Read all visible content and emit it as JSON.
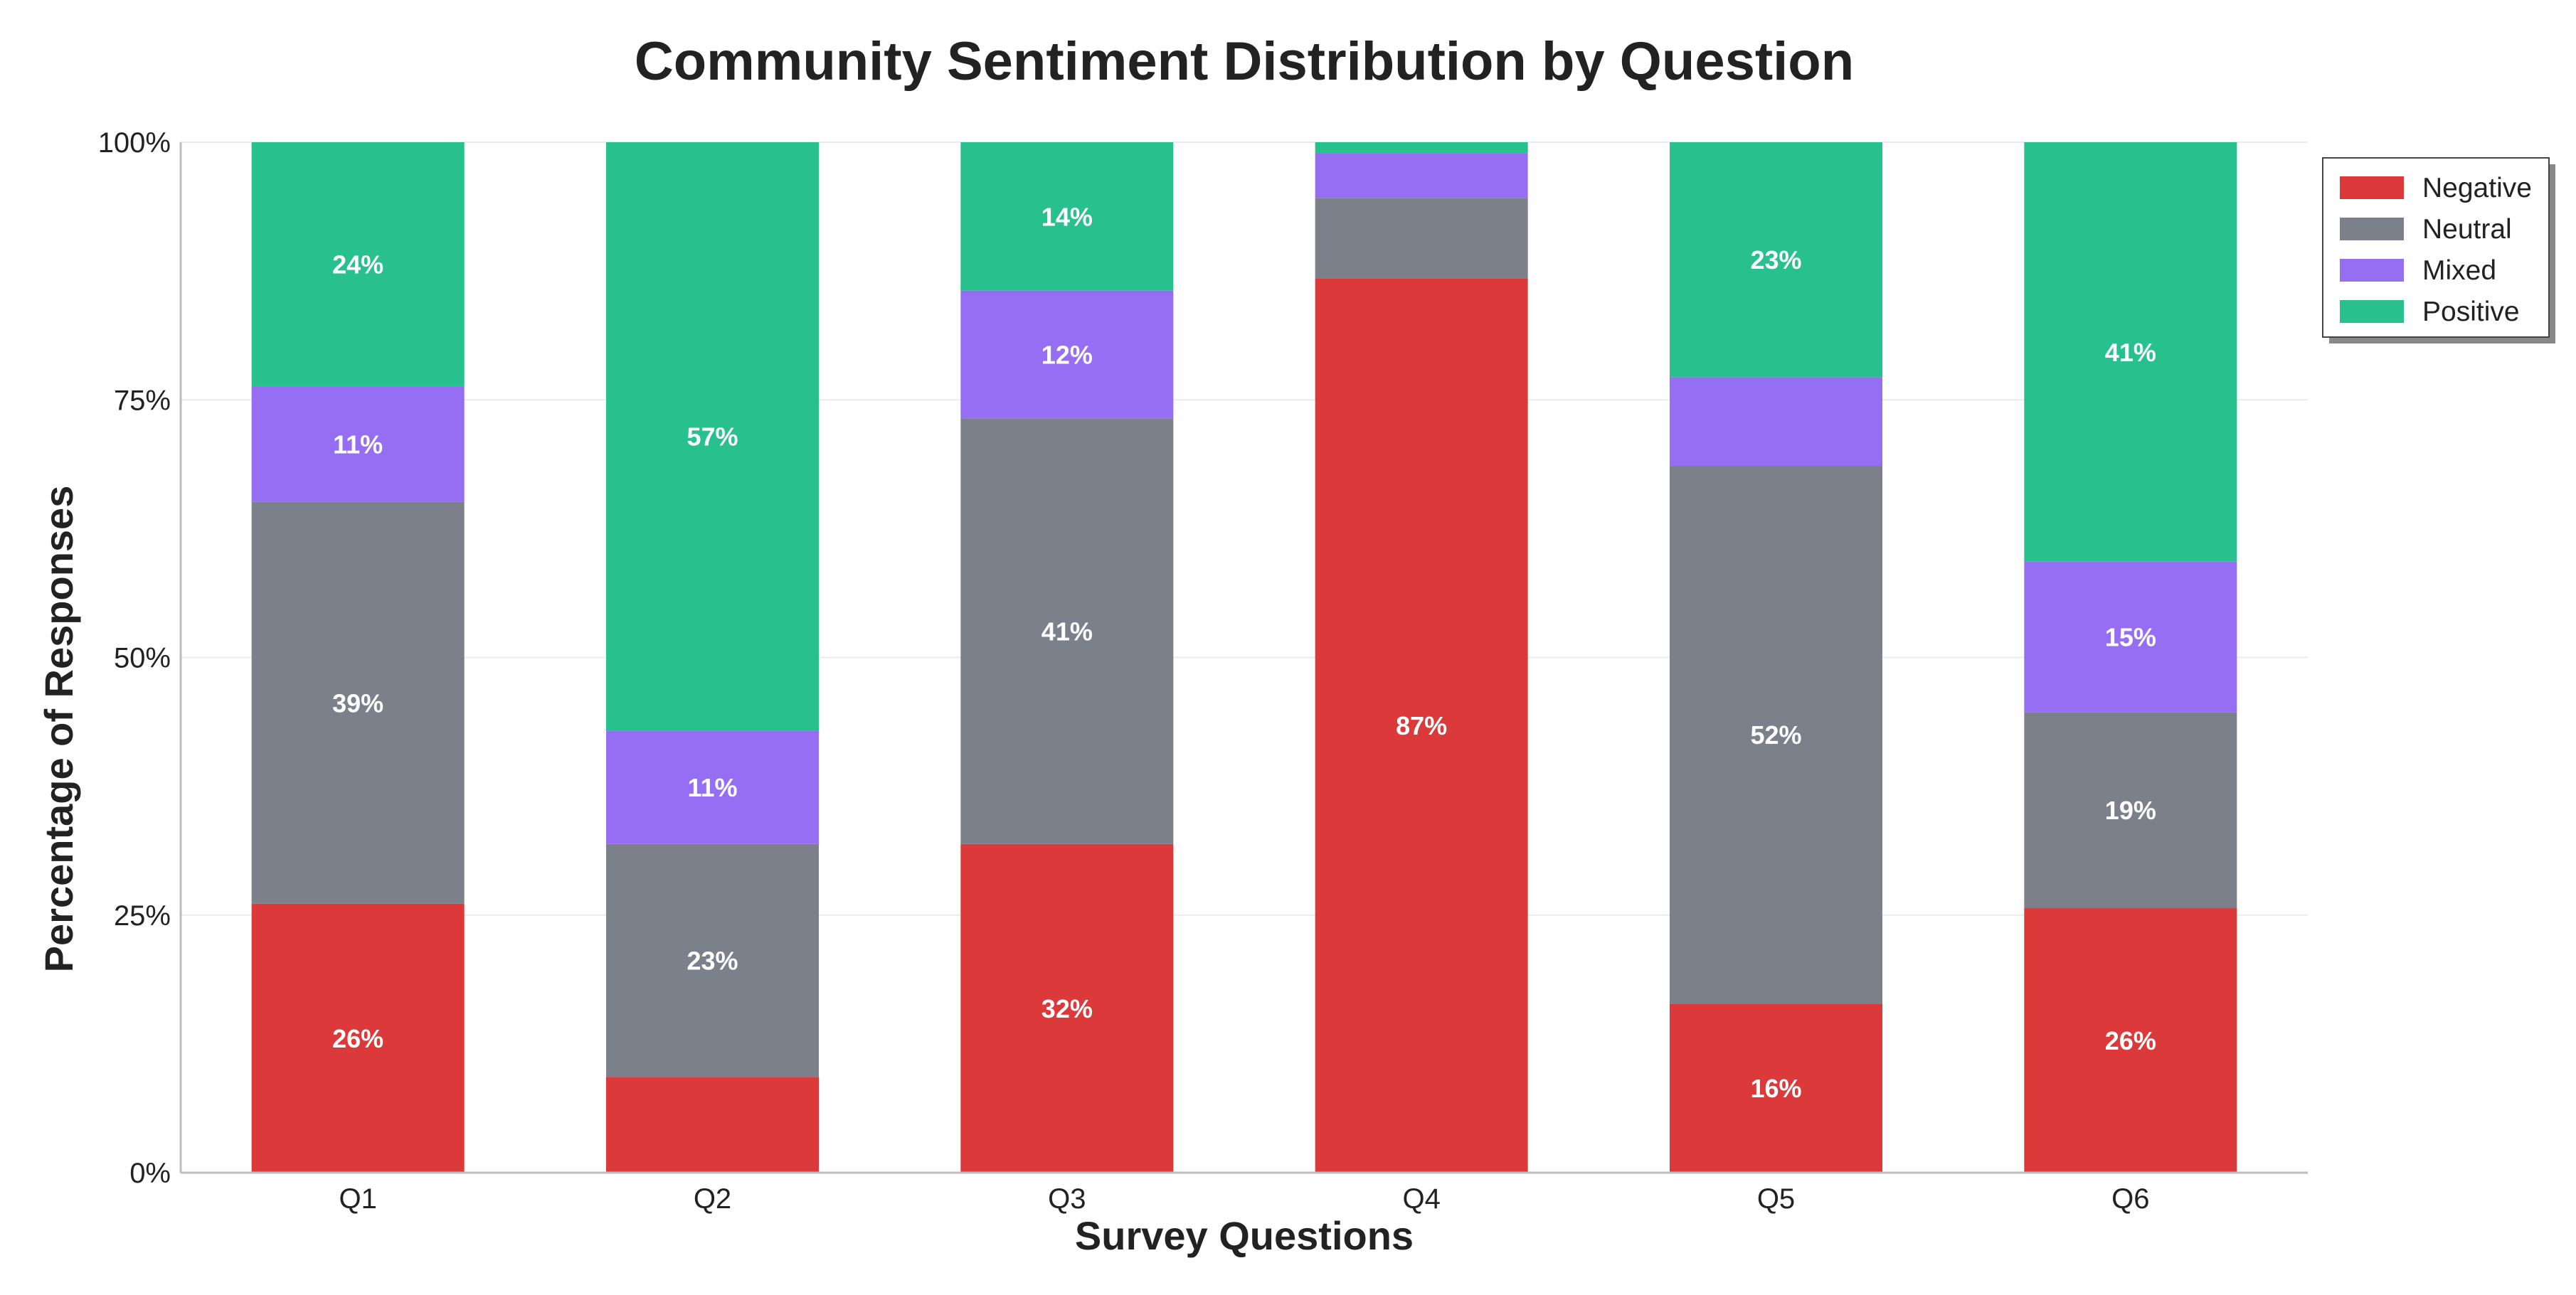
{
  "chart_data": {
    "type": "bar",
    "stacked": true,
    "title": "Community Sentiment Distribution by Question",
    "xlabel": "Survey Questions",
    "ylabel": "Percentage of Responses",
    "categories": [
      "Q1",
      "Q2",
      "Q3",
      "Q4",
      "Q5",
      "Q6"
    ],
    "yticks": [
      "0%",
      "25%",
      "50%",
      "75%",
      "100%"
    ],
    "ylim": [
      0,
      100
    ],
    "grid": true,
    "legend_position": "top-right",
    "series": [
      {
        "name": "Negative",
        "color": "#dc3a3a",
        "values": [
          26.1,
          9.3,
          31.9,
          86.8,
          16.4,
          25.7
        ],
        "labels": [
          "26%",
          "",
          "32%",
          "87%",
          "16%",
          "26%"
        ]
      },
      {
        "name": "Neutral",
        "color": "#7b808b",
        "values": [
          39.0,
          22.6,
          41.3,
          7.8,
          52.2,
          19.0
        ],
        "labels": [
          "39%",
          "23%",
          "41%",
          "",
          "52%",
          "19%"
        ]
      },
      {
        "name": "Mixed",
        "color": "#966ef4",
        "values": [
          11.2,
          11.0,
          12.4,
          4.3,
          8.6,
          14.6
        ],
        "labels": [
          "11%",
          "11%",
          "12%",
          "",
          "",
          "15%"
        ]
      },
      {
        "name": "Positive",
        "color": "#28c08c",
        "values": [
          23.7,
          57.1,
          14.4,
          1.1,
          22.8,
          40.7
        ],
        "labels": [
          "24%",
          "57%",
          "14%",
          "",
          "23%",
          "41%"
        ]
      }
    ]
  }
}
